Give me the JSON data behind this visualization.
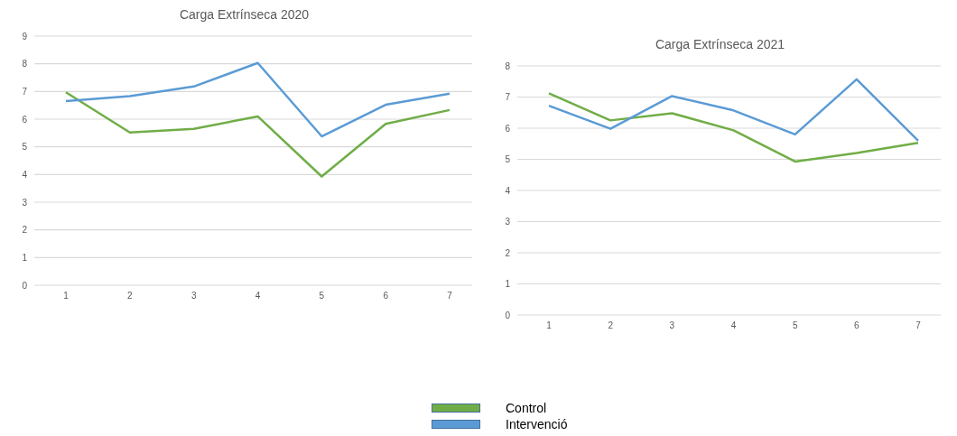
{
  "chart_data": [
    {
      "type": "line",
      "title": "Carga Extrínseca 2020",
      "categories": [
        "1",
        "2",
        "3",
        "4",
        "5",
        "6",
        "7"
      ],
      "series": [
        {
          "name": "Control",
          "color": "#70ad47",
          "values": [
            6.97,
            5.52,
            5.65,
            6.1,
            3.93,
            5.83,
            6.33
          ]
        },
        {
          "name": "Intervenció",
          "color": "#5b9bd5",
          "values": [
            6.65,
            6.83,
            7.18,
            8.03,
            5.38,
            6.52,
            6.92
          ]
        }
      ],
      "ylim": [
        0,
        9
      ],
      "yticks": [
        0,
        1,
        2,
        3,
        4,
        5,
        6,
        7,
        8,
        9
      ],
      "grid": "y",
      "legend": "bottom",
      "marker": "none"
    },
    {
      "type": "line",
      "title": "Carga Extrínseca 2021",
      "categories": [
        "1",
        "2",
        "3",
        "4",
        "5",
        "6",
        "7"
      ],
      "series": [
        {
          "color": "#70ad47",
          "values": [
            7.12,
            6.25,
            6.48,
            5.93,
            4.93,
            5.2,
            5.53
          ]
        },
        {
          "color": "#5b9bd5",
          "values": [
            6.72,
            5.98,
            7.03,
            6.57,
            5.8,
            7.57,
            5.6
          ]
        }
      ],
      "ylim": [
        0,
        8
      ],
      "yticks": [
        0,
        1,
        2,
        3,
        4,
        5,
        6,
        7,
        8
      ],
      "grid": "y",
      "marker": "none"
    }
  ]
}
